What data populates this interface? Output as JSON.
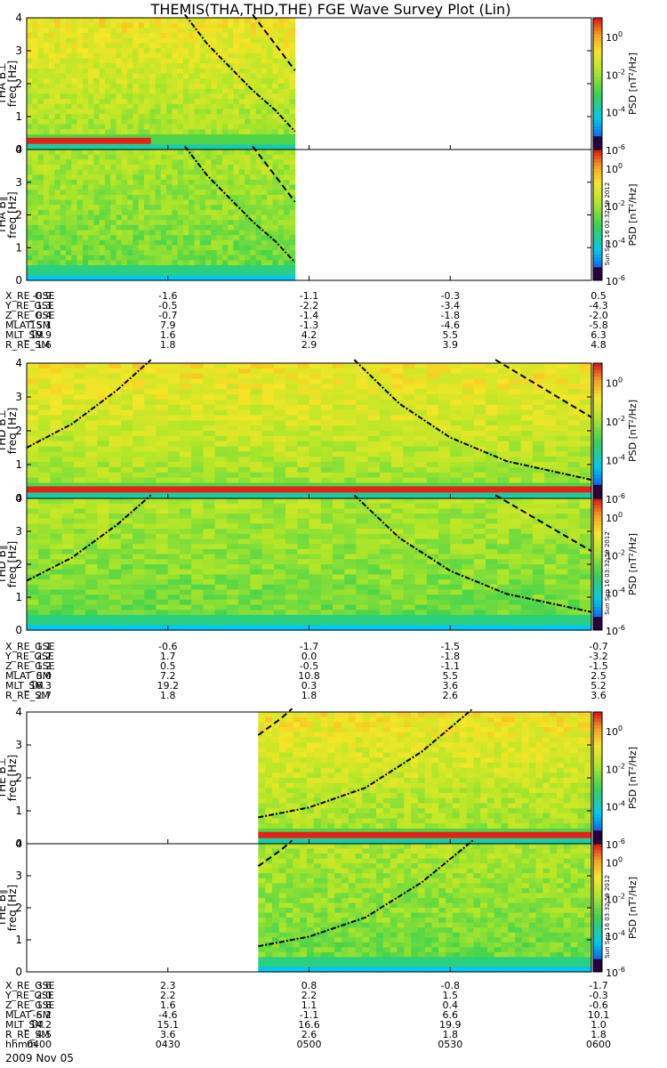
{
  "title": "THEMIS(THA,THD,THE) FGE Wave Survey Plot (Lin)",
  "timestamp": "Sun Sep 16 03:32:59 2012",
  "date_label": "2009 Nov 05",
  "time_row_label": "hhmm",
  "time_ticks": [
    "0400",
    "0430",
    "0500",
    "0530",
    "0600"
  ],
  "colorbar": {
    "label": "PSD [nT²/Hz]",
    "ticks": [
      {
        "base": "10",
        "exp": "0",
        "value": 1
      },
      {
        "base": "10",
        "exp": "-2",
        "value": 0.01
      },
      {
        "base": "10",
        "exp": "-4",
        "value": 0.0001
      },
      {
        "base": "10",
        "exp": "-6",
        "value": 1e-06
      }
    ]
  },
  "chart_data": {
    "type": "heatmap",
    "x_range": [
      "04:00",
      "06:00"
    ],
    "y_range": [
      0,
      4
    ],
    "y_ticks": [
      "0",
      "1",
      "2",
      "3",
      "4"
    ],
    "ylabel": "freq [Hz]",
    "color_scale": "log",
    "color_range": [
      1e-06,
      10
    ],
    "probes": [
      {
        "probe": "THA",
        "panels": [
          {
            "name": "THA B⊥",
            "data_x_end": 0.475,
            "strong_band_hz": 0.25,
            "strong_band_x_end": 0.22
          },
          {
            "name": "THA B∥",
            "data_x_end": 0.475,
            "strong_band_hz": null
          }
        ],
        "cyclotron_lines": [
          {
            "style": "dashdot",
            "points": [
              [
                0.28,
                4.1
              ],
              [
                0.32,
                3.2
              ],
              [
                0.36,
                2.5
              ],
              [
                0.4,
                1.8
              ],
              [
                0.44,
                1.2
              ],
              [
                0.475,
                0.55
              ]
            ]
          },
          {
            "style": "dash",
            "points": [
              [
                0.4,
                4.1
              ],
              [
                0.44,
                3.2
              ],
              [
                0.475,
                2.4
              ]
            ]
          }
        ],
        "ephemeris": [
          {
            "label": "X_RE_GSE",
            "values": [
              "-0.9",
              "-1.6",
              "-1.1",
              "-0.3",
              "0.5"
            ]
          },
          {
            "label": "Y_RE_GSE",
            "values": [
              "1.3",
              "-0.5",
              "-2.2",
              "-3.4",
              "-4.3"
            ]
          },
          {
            "label": "Z_RE_GSE",
            "values": [
              "0.4",
              "-0.7",
              "-1.4",
              "-1.8",
              "-2.0"
            ]
          },
          {
            "label": "MLAT_SM",
            "values": [
              "15.1",
              "7.9",
              "-1.3",
              "-4.6",
              "-5.8"
            ]
          },
          {
            "label": "MLT_SM",
            "values": [
              "19.9",
              "1.6",
              "4.2",
              "5.5",
              "6.3"
            ]
          },
          {
            "label": "R_RE_SM",
            "values": [
              "1.6",
              "1.8",
              "2.9",
              "3.9",
              "4.8"
            ]
          }
        ]
      },
      {
        "probe": "THD",
        "panels": [
          {
            "name": "THD B⊥",
            "data_x_end": 1.0,
            "strong_band_hz": 0.25,
            "strong_band_x_end": 1.0
          },
          {
            "name": "THD B∥",
            "data_x_end": 1.0,
            "strong_band_hz": null
          }
        ],
        "cyclotron_lines": [
          {
            "style": "dashdot",
            "points": [
              [
                0.0,
                1.5
              ],
              [
                0.08,
                2.2
              ],
              [
                0.16,
                3.2
              ],
              [
                0.22,
                4.1
              ]
            ]
          },
          {
            "style": "dashdot",
            "points": [
              [
                0.58,
                4.1
              ],
              [
                0.66,
                2.8
              ],
              [
                0.75,
                1.8
              ],
              [
                0.85,
                1.1
              ],
              [
                1.0,
                0.55
              ]
            ]
          },
          {
            "style": "dash",
            "points": [
              [
                0.83,
                4.1
              ],
              [
                0.92,
                3.2
              ],
              [
                1.0,
                2.4
              ]
            ]
          }
        ],
        "ephemeris": [
          {
            "label": "X_RE_GSE",
            "values": [
              "1.1",
              "-0.6",
              "-1.7",
              "-1.5",
              "-0.7"
            ]
          },
          {
            "label": "Y_RE_GSE",
            "values": [
              "2.2",
              "1.7",
              "0.0",
              "-1.8",
              "-3.2"
            ]
          },
          {
            "label": "Z_RE_GSE",
            "values": [
              "1.2",
              "0.5",
              "-0.5",
              "-1.1",
              "-1.5"
            ]
          },
          {
            "label": "MLAT_SM",
            "values": [
              "0.0",
              "7.2",
              "10.8",
              "5.5",
              "2.5"
            ]
          },
          {
            "label": "MLT_SM",
            "values": [
              "16.3",
              "19.2",
              "0.3",
              "3.6",
              "5.2"
            ]
          },
          {
            "label": "R_RE_SM",
            "values": [
              "2.7",
              "1.8",
              "1.8",
              "2.6",
              "3.6"
            ]
          }
        ]
      },
      {
        "probe": "THE",
        "panels": [
          {
            "name": "THE B⊥",
            "data_x_start": 0.41,
            "data_x_end": 1.0,
            "strong_band_hz": 0.25,
            "strong_band_x_end": 1.0
          },
          {
            "name": "THE B∥",
            "data_x_start": 0.41,
            "data_x_end": 1.0,
            "strong_band_hz": null
          }
        ],
        "cyclotron_lines": [
          {
            "style": "dash",
            "points": [
              [
                0.41,
                3.3
              ],
              [
                0.45,
                3.8
              ],
              [
                0.47,
                4.1
              ]
            ]
          },
          {
            "style": "dashdot",
            "points": [
              [
                0.41,
                0.8
              ],
              [
                0.5,
                1.1
              ],
              [
                0.6,
                1.7
              ],
              [
                0.7,
                2.8
              ],
              [
                0.79,
                4.1
              ]
            ]
          }
        ],
        "ephemeris": [
          {
            "label": "X_RE_GSE",
            "values": [
              "3.6",
              "2.3",
              "0.8",
              "-0.8",
              "-1.7"
            ]
          },
          {
            "label": "Y_RE_GSE",
            "values": [
              "2.0",
              "2.2",
              "2.2",
              "1.5",
              "-0.3"
            ]
          },
          {
            "label": "Z_RE_GSE",
            "values": [
              "1.8",
              "1.6",
              "1.1",
              "0.4",
              "-0.6"
            ]
          },
          {
            "label": "MLAT_SM",
            "values": [
              "-6.2",
              "-4.6",
              "-1.1",
              "6.6",
              "10.1"
            ]
          },
          {
            "label": "MLT_SM",
            "values": [
              "14.2",
              "15.1",
              "16.6",
              "19.9",
              "1.0"
            ]
          },
          {
            "label": "R_RE_SM",
            "values": [
              "4.5",
              "3.6",
              "2.6",
              "1.8",
              "1.8"
            ]
          }
        ]
      }
    ]
  }
}
